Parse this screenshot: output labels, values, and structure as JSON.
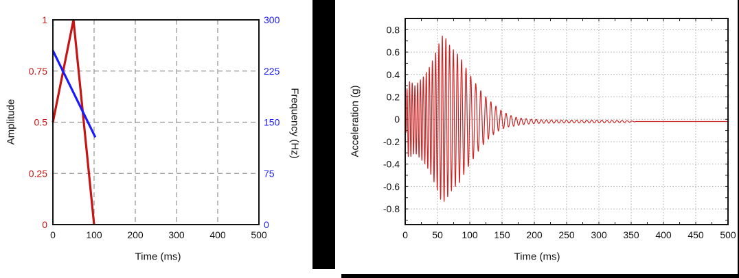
{
  "page": {
    "background": "#ffffff",
    "divider_color": "#000000"
  },
  "chart_data": [
    {
      "id": "wavelet-definition",
      "type": "line",
      "title": "",
      "xlabel": "Time (ms)",
      "xlim": [
        0,
        500
      ],
      "x_ticks": [
        "0",
        "100",
        "200",
        "300",
        "400",
        "500"
      ],
      "grid": "dashed",
      "legend": "none",
      "left_axis": {
        "label": "Amplitude",
        "color": "#c41414",
        "lim": [
          0,
          1
        ],
        "ticks": [
          "0",
          "0.25",
          "0.5",
          "0.75",
          "1"
        ]
      },
      "right_axis": {
        "label": "Frequency (Hz)",
        "color": "#1a1aff",
        "lim": [
          0,
          300
        ],
        "ticks": [
          "0",
          "75",
          "150",
          "225",
          "300"
        ]
      },
      "series": [
        {
          "name": "amplitude",
          "axis": "left",
          "color": "#c41414",
          "points": [
            [
              0,
              0.5
            ],
            [
              50,
              1.0
            ],
            [
              100,
              0.0
            ]
          ]
        },
        {
          "name": "frequency",
          "axis": "right",
          "color": "#1a1aff",
          "points": [
            [
              0,
              255
            ],
            [
              103,
              128
            ]
          ]
        }
      ]
    },
    {
      "id": "acceleration-waveform",
      "type": "line",
      "title": "",
      "xlabel": "Time (ms)",
      "ylabel": "Acceleration (g)",
      "xlim": [
        0,
        500
      ],
      "ylim": [
        -0.94,
        0.9
      ],
      "x_ticks": [
        "0",
        "50",
        "100",
        "150",
        "200",
        "250",
        "300",
        "350",
        "400",
        "450",
        "500"
      ],
      "y_ticks": [
        "0.8",
        "0.6",
        "0.4",
        "0.2",
        "0",
        "-0.2",
        "-0.4",
        "-0.6",
        "-0.8"
      ],
      "grid": "dotted",
      "legend": "none",
      "series": [
        {
          "name": "acceleration",
          "color": "#cc2424",
          "signal": {
            "kind": "decaying-chirp",
            "start_sign": -1,
            "freq_hz": [
              [
                0,
                256
              ],
              [
                105,
                128
              ],
              [
                500,
                128
              ]
            ],
            "envelope_g": [
              [
                0,
                0
              ],
              [
                2,
                0.25
              ],
              [
                5,
                0.34
              ],
              [
                10,
                0.33
              ],
              [
                15,
                0.3
              ],
              [
                20,
                0.33
              ],
              [
                28,
                0.38
              ],
              [
                35,
                0.44
              ],
              [
                42,
                0.52
              ],
              [
                50,
                0.64
              ],
              [
                57,
                0.75
              ],
              [
                63,
                0.72
              ],
              [
                70,
                0.65
              ],
              [
                78,
                0.6
              ],
              [
                85,
                0.56
              ],
              [
                92,
                0.48
              ],
              [
                100,
                0.4
              ],
              [
                108,
                0.33
              ],
              [
                115,
                0.27
              ],
              [
                122,
                0.22
              ],
              [
                130,
                0.17
              ],
              [
                140,
                0.12
              ],
              [
                150,
                0.08
              ],
              [
                160,
                0.055
              ],
              [
                170,
                0.04
              ],
              [
                180,
                0.03
              ],
              [
                195,
                0.02
              ],
              [
                215,
                0.015
              ],
              [
                250,
                0.013
              ],
              [
                300,
                0.012
              ],
              [
                340,
                0.009
              ],
              [
                352,
                0.004
              ],
              [
                360,
                0
              ],
              [
                500,
                0
              ]
            ],
            "baseline_g": [
              [
                0,
                0
              ],
              [
                140,
                0
              ],
              [
                170,
                -0.02
              ],
              [
                500,
                -0.02
              ]
            ],
            "peak_g": 0.75,
            "peak_time_ms": 57
          }
        }
      ]
    }
  ]
}
